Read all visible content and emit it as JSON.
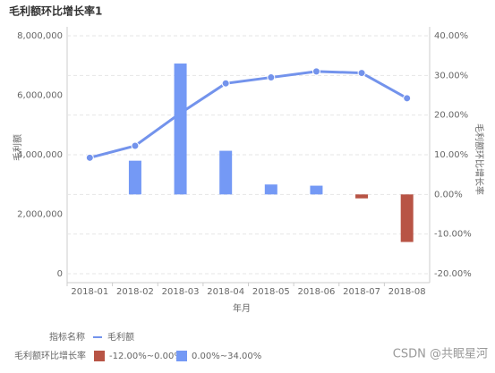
{
  "chart_data": {
    "type": "combo",
    "title": "毛利额环比增长率1",
    "x_label": "年月",
    "y_label": "毛利额",
    "y2_label": "毛利额环比增长率",
    "categories": [
      "2018-01",
      "2018-02",
      "2018-03",
      "2018-04",
      "2018-05",
      "2018-06",
      "2018-07",
      "2018-08"
    ],
    "ylim": [
      0,
      8000000
    ],
    "yticks": [
      0,
      {
        "value": 2000000,
        "label": "2,000,000"
      },
      {
        "value": 4000000,
        "label": "4,000,000"
      },
      {
        "value": 6000000,
        "label": "6,000,000"
      },
      {
        "value": 8000000,
        "label": "8,000,000"
      }
    ],
    "y2lim": [
      -20,
      40
    ],
    "y2ticks": [
      {
        "value": -20,
        "label": "-20.00%"
      },
      {
        "value": -10,
        "label": "-10.00%"
      },
      {
        "value": 0,
        "label": "0.00%"
      },
      {
        "value": 10,
        "label": "10.00%"
      },
      {
        "value": 20,
        "label": "20.00%"
      },
      {
        "value": 30,
        "label": "30.00%"
      },
      {
        "value": 40,
        "label": "40.00%"
      }
    ],
    "grid": true,
    "legend_title": "指标名称",
    "series": [
      {
        "name": "毛利额",
        "type": "line",
        "color": "#7393ec",
        "values": [
          3900000,
          4300000,
          5400000,
          6400000,
          6600000,
          6800000,
          6750000,
          5900000
        ]
      },
      {
        "name": "毛利额环比增长率",
        "type": "bar",
        "axis": "y2",
        "values": [
          null,
          8.5,
          33,
          11,
          2.5,
          2.2,
          -1,
          -12
        ],
        "pieces": [
          {
            "label": "-12.00%~0.00%",
            "min": -12,
            "max": 0,
            "color": "#b85445"
          },
          {
            "label": "0.00%~34.00%",
            "min": 0,
            "max": 34,
            "color": "#7499f5"
          }
        ]
      }
    ],
    "watermark": "CSDN @共眠星河"
  }
}
